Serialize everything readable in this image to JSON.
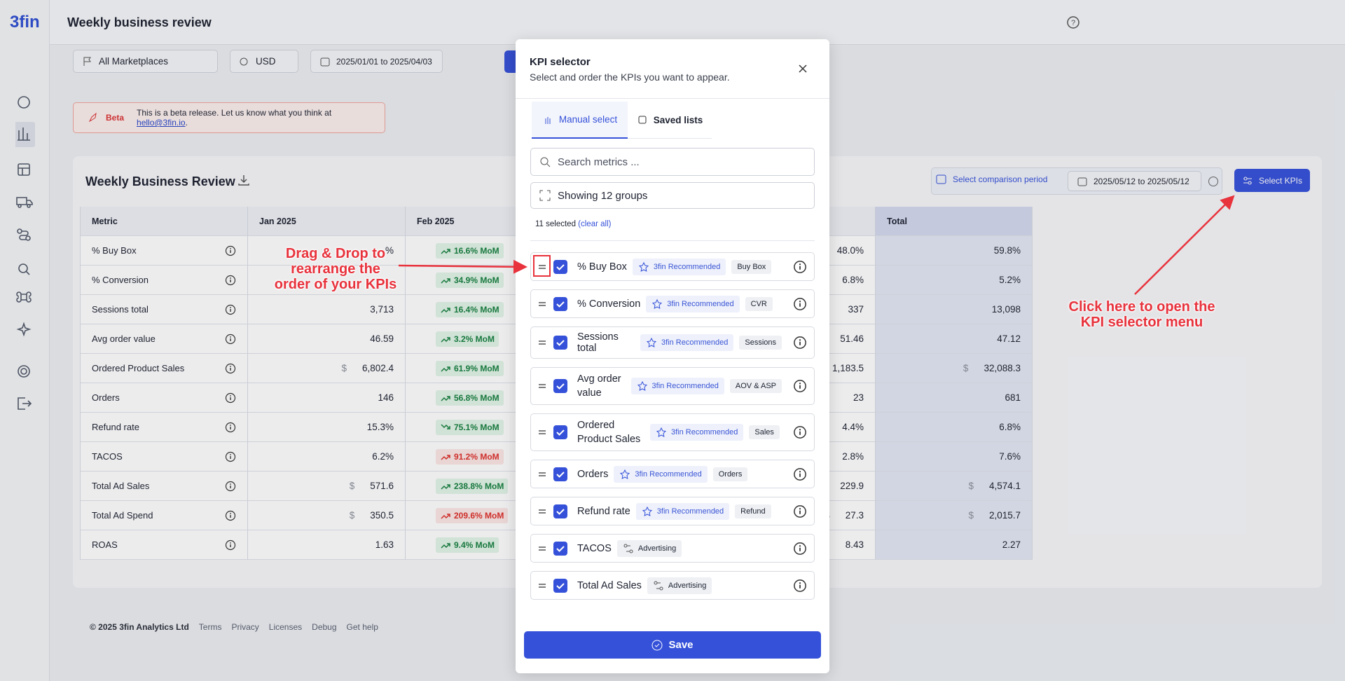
{
  "sidebar": {
    "logo": "3fin"
  },
  "header": {
    "title": "Weekly business review"
  },
  "toolbar": {
    "marketplace": "All Marketplaces",
    "currency": "USD",
    "date_range": "2025/01/01 to 2025/04/03"
  },
  "banner": {
    "label": "Beta",
    "text": "This is a beta release. Let us know what you think at",
    "email": "hello@3fin.io",
    "end": "."
  },
  "card": {
    "title": "Weekly Business Review",
    "comparison": "Select comparison period",
    "comparison_range": "2025/05/12 to 2025/05/12",
    "select_kpis": "Select KPIs"
  },
  "table": {
    "columns": [
      "Metric",
      "Jan 2025",
      "Feb 2025",
      null,
      null,
      "Total"
    ],
    "rows": [
      {
        "metric": "% Buy Box",
        "jan_currency": null,
        "jan": "%",
        "feb": "16.6% MoM",
        "trend": "up",
        "tone": "positive",
        "feb_currency": null,
        "col5_currency": null,
        "col5": "48.0%",
        "total_currency": null,
        "total": "59.8%"
      },
      {
        "metric": "% Conversion",
        "jan_currency": null,
        "jan": null,
        "feb": "34.9% MoM",
        "trend": "up",
        "tone": "positive",
        "feb_currency": null,
        "col5_currency": null,
        "col5": "6.8%",
        "total_currency": null,
        "total": "5.2%"
      },
      {
        "metric": "Sessions total",
        "jan_currency": null,
        "jan": "3,713",
        "feb": "16.4% MoM",
        "trend": "up",
        "tone": "positive",
        "feb_currency": null,
        "col5_currency": null,
        "col5": "337",
        "total_currency": null,
        "total": "13,098"
      },
      {
        "metric": "Avg order value",
        "jan_currency": null,
        "jan": "46.59",
        "feb": "3.2% MoM",
        "trend": "up",
        "tone": "positive",
        "feb_currency": null,
        "col5_currency": null,
        "col5": "51.46",
        "total_currency": null,
        "total": "47.12"
      },
      {
        "metric": "Ordered Product Sales",
        "jan_currency": "$",
        "jan": "6,802.4",
        "feb": "61.9% MoM",
        "trend": "up",
        "tone": "positive",
        "feb_currency": "$",
        "col5_currency": null,
        "col5": "1,183.5",
        "total_currency": "$",
        "total": "32,088.3"
      },
      {
        "metric": "Orders",
        "jan_currency": null,
        "jan": "146",
        "feb": "56.8% MoM",
        "trend": "up",
        "tone": "positive",
        "feb_currency": null,
        "col5_currency": null,
        "col5": "23",
        "total_currency": null,
        "total": "681"
      },
      {
        "metric": "Refund rate",
        "jan_currency": null,
        "jan": "15.3%",
        "feb": "75.1% MoM",
        "trend": "down",
        "tone": "positive",
        "feb_currency": null,
        "col5_currency": null,
        "col5": "4.4%",
        "total_currency": null,
        "total": "6.8%"
      },
      {
        "metric": "TACOS",
        "jan_currency": null,
        "jan": "6.2%",
        "feb": "91.2% MoM",
        "trend": "up",
        "tone": "negative",
        "feb_currency": null,
        "col5_currency": null,
        "col5": "2.8%",
        "total_currency": null,
        "total": "7.6%"
      },
      {
        "metric": "Total Ad Sales",
        "jan_currency": "$",
        "jan": "571.6",
        "feb": "238.8% MoM",
        "trend": "up",
        "tone": "positive",
        "feb_currency": "$",
        "col5_currency": null,
        "col5": "229.9",
        "total_currency": "$",
        "total": "4,574.1"
      },
      {
        "metric": "Total Ad Spend",
        "jan_currency": "$",
        "jan": "350.5",
        "feb": "209.6% MoM",
        "trend": "up",
        "tone": "negative",
        "feb_currency": "$",
        "col5_currency": "$",
        "col5": "27.3",
        "total_currency": "$",
        "total": "2,015.7"
      },
      {
        "metric": "ROAS",
        "jan_currency": null,
        "jan": "1.63",
        "feb": "9.4% MoM",
        "trend": "up",
        "tone": "positive",
        "feb_currency": null,
        "col5_currency": null,
        "col5": "8.43",
        "total_currency": null,
        "total": "2.27"
      }
    ]
  },
  "footer": {
    "copyright": "© 2025 3fin Analytics Ltd",
    "links": [
      "Terms",
      "Privacy",
      "Licenses",
      "Debug",
      "Get help"
    ]
  },
  "modal": {
    "title": "KPI selector",
    "subtitle": "Select and order the KPIs you want to appear.",
    "tabs": [
      "Manual select",
      "Saved lists"
    ],
    "search_placeholder": "Search metrics ...",
    "groups": "Showing 12 groups",
    "selected": "11 selected",
    "clear": "(clear all)",
    "items": [
      {
        "name": "% Buy Box",
        "recommended": "3fin Recommended",
        "group": "Buy Box",
        "checked": true
      },
      {
        "name": "% Conversion",
        "recommended": "3fin Recommended",
        "group": "CVR",
        "checked": true
      },
      {
        "name": "Sessions total",
        "recommended": "3fin Recommended",
        "group": "Sessions",
        "checked": true
      },
      {
        "name": "Avg order value",
        "recommended": "3fin Recommended",
        "group": "AOV & ASP",
        "checked": true
      },
      {
        "name": "Ordered Product Sales",
        "recommended": "3fin Recommended",
        "group": "Sales",
        "checked": true
      },
      {
        "name": "Orders",
        "recommended": "3fin Recommended",
        "group": "Orders",
        "checked": true
      },
      {
        "name": "Refund rate",
        "recommended": "3fin Recommended",
        "group": "Refund",
        "checked": true
      },
      {
        "name": "TACOS",
        "recommended": null,
        "group": "Advertising",
        "checked": true
      },
      {
        "name": "Total Ad Sales",
        "recommended": null,
        "group": "Advertising",
        "checked": true
      }
    ],
    "save": "Save"
  },
  "annotations": {
    "drag": [
      "Drag & Drop to",
      "rearrange the",
      "order of your KPIs"
    ],
    "open": [
      "Click here to open the",
      "KPI selector menu"
    ]
  }
}
